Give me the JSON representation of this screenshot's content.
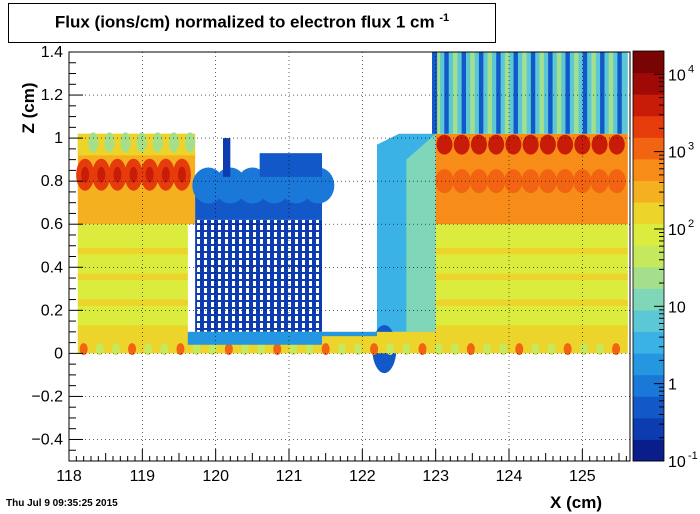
{
  "chart_data": {
    "type": "heatmap",
    "title": "Flux (ions/cm) normalized to electron flux 1 cm",
    "title_superscript": "-1",
    "xlabel": "X (cm)",
    "ylabel": "Z (cm)",
    "xlim": [
      118,
      125.65
    ],
    "ylim": [
      -0.5,
      1.4
    ],
    "x_ticks": [
      "118",
      "119",
      "120",
      "121",
      "122",
      "123",
      "124",
      "125"
    ],
    "y_ticks": [
      "−0.4",
      "−0.2",
      "0",
      "0.2",
      "0.4",
      "0.6",
      "0.8",
      "1",
      "1.2",
      "1.4"
    ],
    "grid": true,
    "colorbar": {
      "scale": "log",
      "range": [
        0.1,
        20000
      ],
      "tick_values": [
        0.1,
        1,
        10,
        100,
        1000,
        10000
      ],
      "tick_bases": [
        "10",
        "1",
        "10",
        "10",
        "10",
        "10"
      ],
      "tick_exponents": [
        "-1",
        "",
        "",
        "2",
        "3",
        "4"
      ],
      "palette": [
        "#0a1d8a",
        "#0d3bb0",
        "#1258c8",
        "#1a78d8",
        "#2596e0",
        "#3bb2e6",
        "#5cc8d6",
        "#7fd6b8",
        "#a4e08c",
        "#c6e85c",
        "#dcec3e",
        "#ecd42a",
        "#f5b020",
        "#f78c18",
        "#f36412",
        "#e63c0c",
        "#c81c08",
        "#a00a06",
        "#780404"
      ]
    },
    "regions": [
      {
        "x": [
          118.1,
          119.7
        ],
        "z": [
          0.6,
          1.02
        ],
        "value_range": [
          30,
          3000
        ],
        "note": "orange band with red peaks near z 0.83"
      },
      {
        "x": [
          118.1,
          119.6
        ],
        "z": [
          0.08,
          0.6
        ],
        "value_range": [
          50,
          200
        ]
      },
      {
        "x": [
          119.7,
          121.45
        ],
        "z": [
          0.08,
          0.95
        ],
        "value_range": [
          0.1,
          1
        ]
      },
      {
        "x": [
          122.2,
          123.0
        ],
        "z": [
          0.1,
          1.05
        ],
        "value_range": [
          0.3,
          30
        ]
      },
      {
        "x": [
          123.0,
          125.6
        ],
        "z": [
          1.02,
          1.4
        ],
        "value_range": [
          0.3,
          50
        ]
      },
      {
        "x": [
          123.0,
          125.6
        ],
        "z": [
          0.6,
          1.02
        ],
        "value_range": [
          100,
          5000
        ],
        "note": "red peaks near z 0.97"
      },
      {
        "x": [
          123.0,
          125.6
        ],
        "z": [
          0.08,
          0.6
        ],
        "value_range": [
          50,
          200
        ]
      },
      {
        "x": [
          118.1,
          125.6
        ],
        "z": [
          0.0,
          0.1
        ],
        "value_range": [
          0.5,
          500
        ],
        "note": "scalloped bottom edge"
      }
    ]
  },
  "footer": {
    "timestamp": "Thu Jul  9 09:35:25 2015"
  }
}
